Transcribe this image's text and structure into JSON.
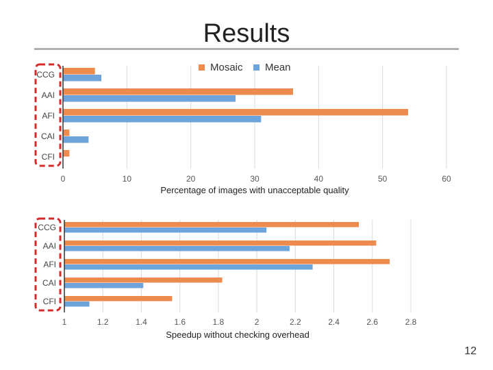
{
  "slide": {
    "title": "Results",
    "page_number": "12"
  },
  "colors": {
    "mosaic": "#ed8b4f",
    "mean": "#6ea4dc",
    "highlight": "#d62a2a",
    "grid": "#d9d9d9"
  },
  "chart_data": [
    {
      "type": "bar",
      "orientation": "horizontal",
      "categories": [
        "CCG",
        "AAI",
        "AFI",
        "CAI",
        "CFI"
      ],
      "series": [
        {
          "name": "Mosaic",
          "values": [
            5,
            36,
            54,
            1,
            1
          ]
        },
        {
          "name": "Mean",
          "values": [
            6,
            27,
            31,
            4,
            0
          ]
        }
      ],
      "xlabel": "Percentage of images with unacceptable quality",
      "xlim": [
        0,
        60
      ],
      "xticks": [
        0,
        10,
        20,
        30,
        40,
        50,
        60
      ],
      "legend": "top-right",
      "grid": true
    },
    {
      "type": "bar",
      "orientation": "horizontal",
      "categories": [
        "CCG",
        "AAI",
        "AFI",
        "CAI",
        "CFI"
      ],
      "series": [
        {
          "name": "Mosaic",
          "values": [
            2.53,
            2.62,
            2.69,
            1.82,
            1.56
          ]
        },
        {
          "name": "Mean",
          "values": [
            2.05,
            2.17,
            2.29,
            1.41,
            1.13
          ]
        }
      ],
      "xlabel": "Speedup without checking overhead",
      "xlim": [
        1,
        2.8
      ],
      "xticks": [
        "1",
        "1.2",
        "1.4",
        "1.6",
        "1.8",
        "2",
        "2.2",
        "2.4",
        "2.6",
        "2.8"
      ],
      "grid": true
    }
  ]
}
